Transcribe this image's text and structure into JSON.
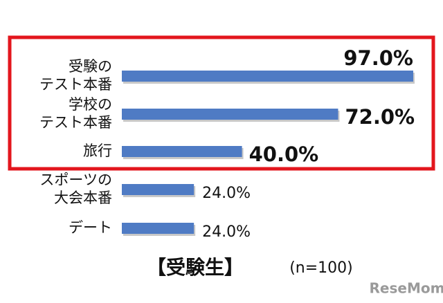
{
  "chart_data": {
    "type": "bar",
    "orientation": "horizontal",
    "categories": [
      [
        "受験の",
        "テスト本番"
      ],
      [
        "学校の",
        "テスト本番"
      ],
      [
        "旅行"
      ],
      [
        "スポーツの",
        "大会本番"
      ],
      [
        "デート"
      ]
    ],
    "values": [
      97.0,
      72.0,
      40.0,
      24.0,
      24.0
    ],
    "value_labels": [
      "97.0%",
      "72.0%",
      "40.0%",
      "24.0%",
      "24.0%"
    ],
    "color": "#4f7bc4",
    "subtitle": "【受験生】",
    "note": "(n=100)",
    "watermark": "ReseMom"
  }
}
